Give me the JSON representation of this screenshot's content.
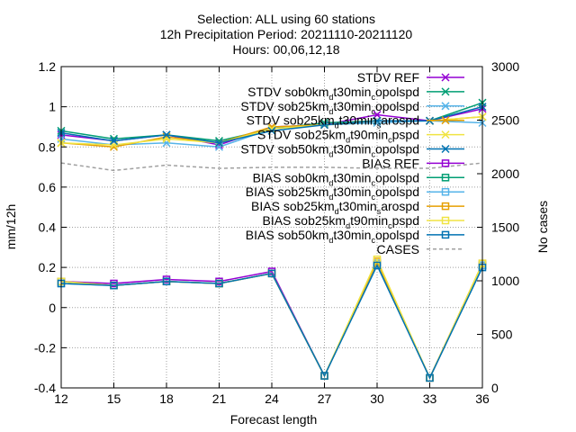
{
  "chart_data": {
    "type": "line",
    "title_lines": [
      "Selection: ALL using    60 stations",
      "12h Precipitation   Period: 20211110-20211120",
      "Hours: 00,06,12,18"
    ],
    "xlabel": "Forecast length",
    "ylabel": "mm/12h",
    "y2label": "No cases",
    "x": [
      12,
      15,
      18,
      21,
      24,
      27,
      30,
      33,
      36
    ],
    "xlim": [
      12,
      36
    ],
    "ylim": [
      -0.4,
      1.2
    ],
    "y2lim": [
      0,
      3000
    ],
    "x_ticks": [
      "12",
      "15",
      "18",
      "21",
      "24",
      "27",
      "30",
      "33",
      "36"
    ],
    "y_ticks": [
      "-0.4",
      "-0.2",
      "0",
      "0.2",
      "0.4",
      "0.6",
      "0.8",
      "1",
      "1.2"
    ],
    "y2_ticks": [
      "0",
      "500",
      "1000",
      "1500",
      "2000",
      "2500",
      "3000"
    ],
    "grid": true,
    "legend_position": "top-right",
    "series": [
      {
        "name": "STDV REF",
        "legend": [
          "STDV REF"
        ],
        "axis": "y",
        "color": "#9400d3",
        "marker": "x",
        "dash": false,
        "values": [
          0.86,
          0.83,
          0.86,
          0.81,
          0.9,
          0.91,
          0.96,
          0.93,
          0.99
        ]
      },
      {
        "name": "STDV sob0km_d t30min_c opolspd",
        "legend": [
          "STDV sob0km",
          "d",
          "t30min",
          "c",
          "opolspd"
        ],
        "axis": "y",
        "color": "#009e73",
        "marker": "x",
        "dash": false,
        "values": [
          0.88,
          0.84,
          0.86,
          0.83,
          0.89,
          0.92,
          0.93,
          0.93,
          1.02
        ]
      },
      {
        "name": "STDV sob25km_d t30min_c opolspd",
        "legend": [
          "STDV sob25km",
          "d",
          "t30min",
          "c",
          "opolspd"
        ],
        "axis": "y",
        "color": "#56b4e9",
        "marker": "x",
        "dash": false,
        "values": [
          0.84,
          0.81,
          0.82,
          0.8,
          0.89,
          0.91,
          0.92,
          0.93,
          0.92
        ]
      },
      {
        "name": "STDV sob25km_d t30min_s arospd",
        "legend": [
          "STDV sob25km",
          "d",
          "t30min",
          "s",
          "arospd"
        ],
        "axis": "y",
        "color": "#e69f00",
        "marker": "x",
        "dash": false,
        "values": [
          0.82,
          0.8,
          0.85,
          0.82,
          0.9,
          0.91,
          0.93,
          0.93,
          0.95
        ]
      },
      {
        "name": "STDV sob25km_d t90min_c pspd",
        "legend": [
          "STDV sob25km",
          "d",
          "t90min",
          "c",
          "pspd"
        ],
        "axis": "y",
        "color": "#f0e442",
        "marker": "x",
        "dash": false,
        "values": [
          0.82,
          0.81,
          0.84,
          0.82,
          0.89,
          0.91,
          0.93,
          0.93,
          0.95
        ]
      },
      {
        "name": "STDV sob50km_d t30min_c opolspd",
        "legend": [
          "STDV sob50km",
          "d",
          "t30min",
          "c",
          "opolspd"
        ],
        "axis": "y",
        "color": "#0072b2",
        "marker": "x",
        "dash": false,
        "values": [
          0.87,
          0.83,
          0.86,
          0.82,
          0.88,
          0.91,
          0.93,
          0.93,
          1.0
        ]
      },
      {
        "name": "BIAS REF",
        "legend": [
          "BIAS REF"
        ],
        "axis": "y",
        "color": "#9400d3",
        "marker": "square",
        "dash": false,
        "values": [
          0.13,
          0.12,
          0.14,
          0.13,
          0.18,
          -0.34,
          0.22,
          -0.35,
          0.21
        ]
      },
      {
        "name": "BIAS sob0km_d t30min_c opolspd",
        "legend": [
          "BIAS sob0km",
          "d",
          "t30min",
          "c",
          "opolspd"
        ],
        "axis": "y",
        "color": "#009e73",
        "marker": "square",
        "dash": false,
        "values": [
          0.13,
          0.11,
          0.13,
          0.12,
          0.17,
          -0.34,
          0.22,
          -0.35,
          0.21
        ]
      },
      {
        "name": "BIAS sob25km_d t30min_c opolspd",
        "legend": [
          "BIAS sob25km",
          "d",
          "t30min",
          "c",
          "opolspd"
        ],
        "axis": "y",
        "color": "#56b4e9",
        "marker": "square",
        "dash": false,
        "values": [
          0.12,
          0.11,
          0.13,
          0.12,
          0.17,
          -0.34,
          0.22,
          -0.35,
          0.21
        ]
      },
      {
        "name": "BIAS sob25km_d t30min_s arospd",
        "legend": [
          "BIAS sob25km",
          "d",
          "t30min",
          "s",
          "arospd"
        ],
        "axis": "y",
        "color": "#e69f00",
        "marker": "square",
        "dash": false,
        "values": [
          0.13,
          0.11,
          0.13,
          0.12,
          0.17,
          -0.34,
          0.23,
          -0.35,
          0.22
        ]
      },
      {
        "name": "BIAS sob25km_d t90min_c pspd",
        "legend": [
          "BIAS sob25km",
          "d",
          "t90min",
          "c",
          "pspd"
        ],
        "axis": "y",
        "color": "#f0e442",
        "marker": "square",
        "dash": false,
        "values": [
          0.13,
          0.11,
          0.13,
          0.12,
          0.17,
          -0.34,
          0.24,
          -0.35,
          0.22
        ]
      },
      {
        "name": "BIAS sob50km_d t30min_c opolspd",
        "legend": [
          "BIAS sob50km",
          "d",
          "t30min",
          "c",
          "opolspd"
        ],
        "axis": "y",
        "color": "#0072b2",
        "marker": "square",
        "dash": false,
        "values": [
          0.12,
          0.11,
          0.13,
          0.12,
          0.17,
          -0.34,
          0.21,
          -0.35,
          0.2
        ]
      },
      {
        "name": "CASES",
        "legend": [
          "CASES"
        ],
        "axis": "y2",
        "color": "#a0a0a0",
        "marker": "none",
        "dash": true,
        "values": [
          2100,
          2030,
          2080,
          2050,
          2060,
          2060,
          2050,
          2050,
          2100
        ]
      }
    ]
  }
}
